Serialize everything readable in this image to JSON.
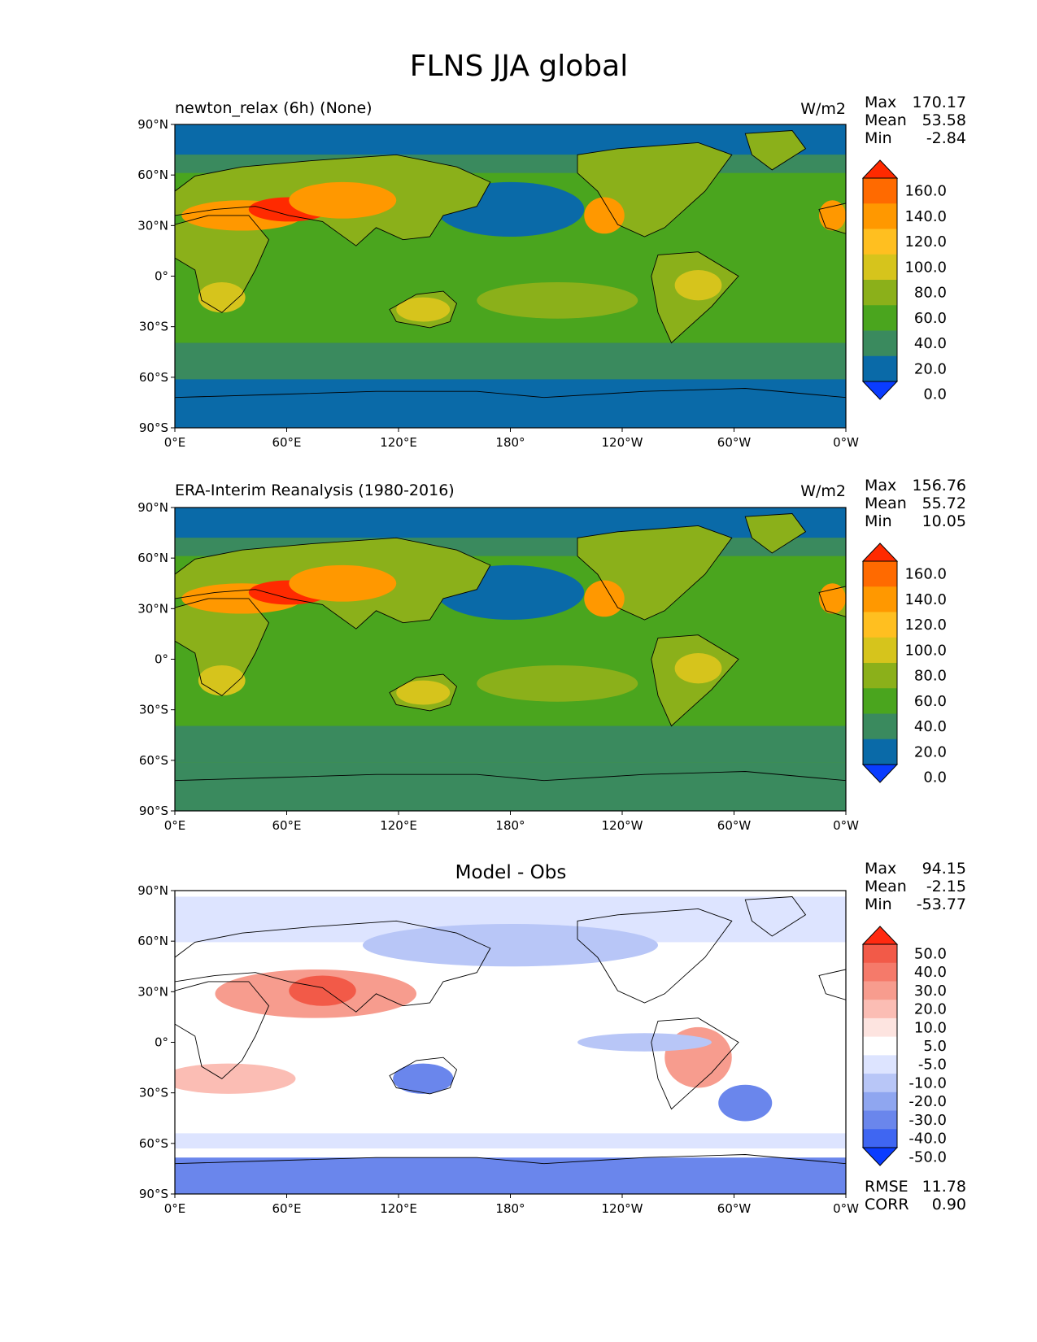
{
  "title": "FLNS JJA global",
  "x_ticks": [
    "0°E",
    "60°E",
    "120°E",
    "180°",
    "120°W",
    "60°W",
    "0°W"
  ],
  "y_ticks": [
    "90°N",
    "60°N",
    "30°N",
    "0°",
    "30°S",
    "60°S",
    "90°S"
  ],
  "panels": [
    {
      "name": "test",
      "left_title": "newton_relax (6h) (None)",
      "center_title": "",
      "right_title": "W/m2",
      "stats": [
        [
          "Max",
          "170.17"
        ],
        [
          "Mean",
          "53.58"
        ],
        [
          "Min",
          "-2.84"
        ]
      ],
      "colorbar": {
        "labels": [
          "160.0",
          "140.0",
          "120.0",
          "100.0",
          "80.0",
          "60.0",
          "40.0",
          "20.0",
          "0.0"
        ],
        "colors": [
          "#ff2a00",
          "#ff6a00",
          "#ff9800",
          "#ffbf20",
          "#d6c41c",
          "#8bb01a",
          "#4aa51e",
          "#3a8a5e",
          "#0a6aa8",
          "#0a3cff"
        ]
      },
      "extra": []
    },
    {
      "name": "reference",
      "left_title": "ERA-Interim Reanalysis (1980-2016)",
      "center_title": "",
      "right_title": "W/m2",
      "stats": [
        [
          "Max",
          "156.76"
        ],
        [
          "Mean",
          "55.72"
        ],
        [
          "Min",
          "10.05"
        ]
      ],
      "colorbar": {
        "labels": [
          "160.0",
          "140.0",
          "120.0",
          "100.0",
          "80.0",
          "60.0",
          "40.0",
          "20.0",
          "0.0"
        ],
        "colors": [
          "#ff2a00",
          "#ff6a00",
          "#ff9800",
          "#ffbf20",
          "#d6c41c",
          "#8bb01a",
          "#4aa51e",
          "#3a8a5e",
          "#0a6aa8",
          "#0a3cff"
        ]
      },
      "extra": []
    },
    {
      "name": "diff",
      "left_title": "",
      "center_title": "Model - Obs",
      "right_title": "",
      "stats": [
        [
          "Max",
          "94.15"
        ],
        [
          "Mean",
          "-2.15"
        ],
        [
          "Min",
          "-53.77"
        ]
      ],
      "colorbar": {
        "labels": [
          "50.0",
          "40.0",
          "30.0",
          "20.0",
          "10.0",
          "5.0",
          "-5.0",
          "-10.0",
          "-20.0",
          "-30.0",
          "-40.0",
          "-50.0"
        ],
        "colors": [
          "#ff2a10",
          "#f25a48",
          "#f57a6a",
          "#f79c8e",
          "#fbbdb4",
          "#fde4e0",
          "#ffffff",
          "#dde4ff",
          "#b8c6f7",
          "#8fa6f0",
          "#6a86ec",
          "#3f66f2",
          "#0a3cff"
        ]
      },
      "extra": [
        [
          "RMSE",
          "11.78"
        ],
        [
          "CORR",
          "0.90"
        ]
      ]
    }
  ],
  "colors": {
    "ocean_polar": "#0a6aa8",
    "ocean_mid": "#3a8a5e",
    "ocean_tropics": "#4aa51e",
    "land_green": "#8bb01a",
    "land_yellow": "#d6c41c",
    "land_orange": "#ff9800",
    "land_red": "#ff2a00",
    "diff_white": "#ffffff",
    "diff_blue": "#b8c6f7",
    "diff_red": "#f79c8e"
  }
}
